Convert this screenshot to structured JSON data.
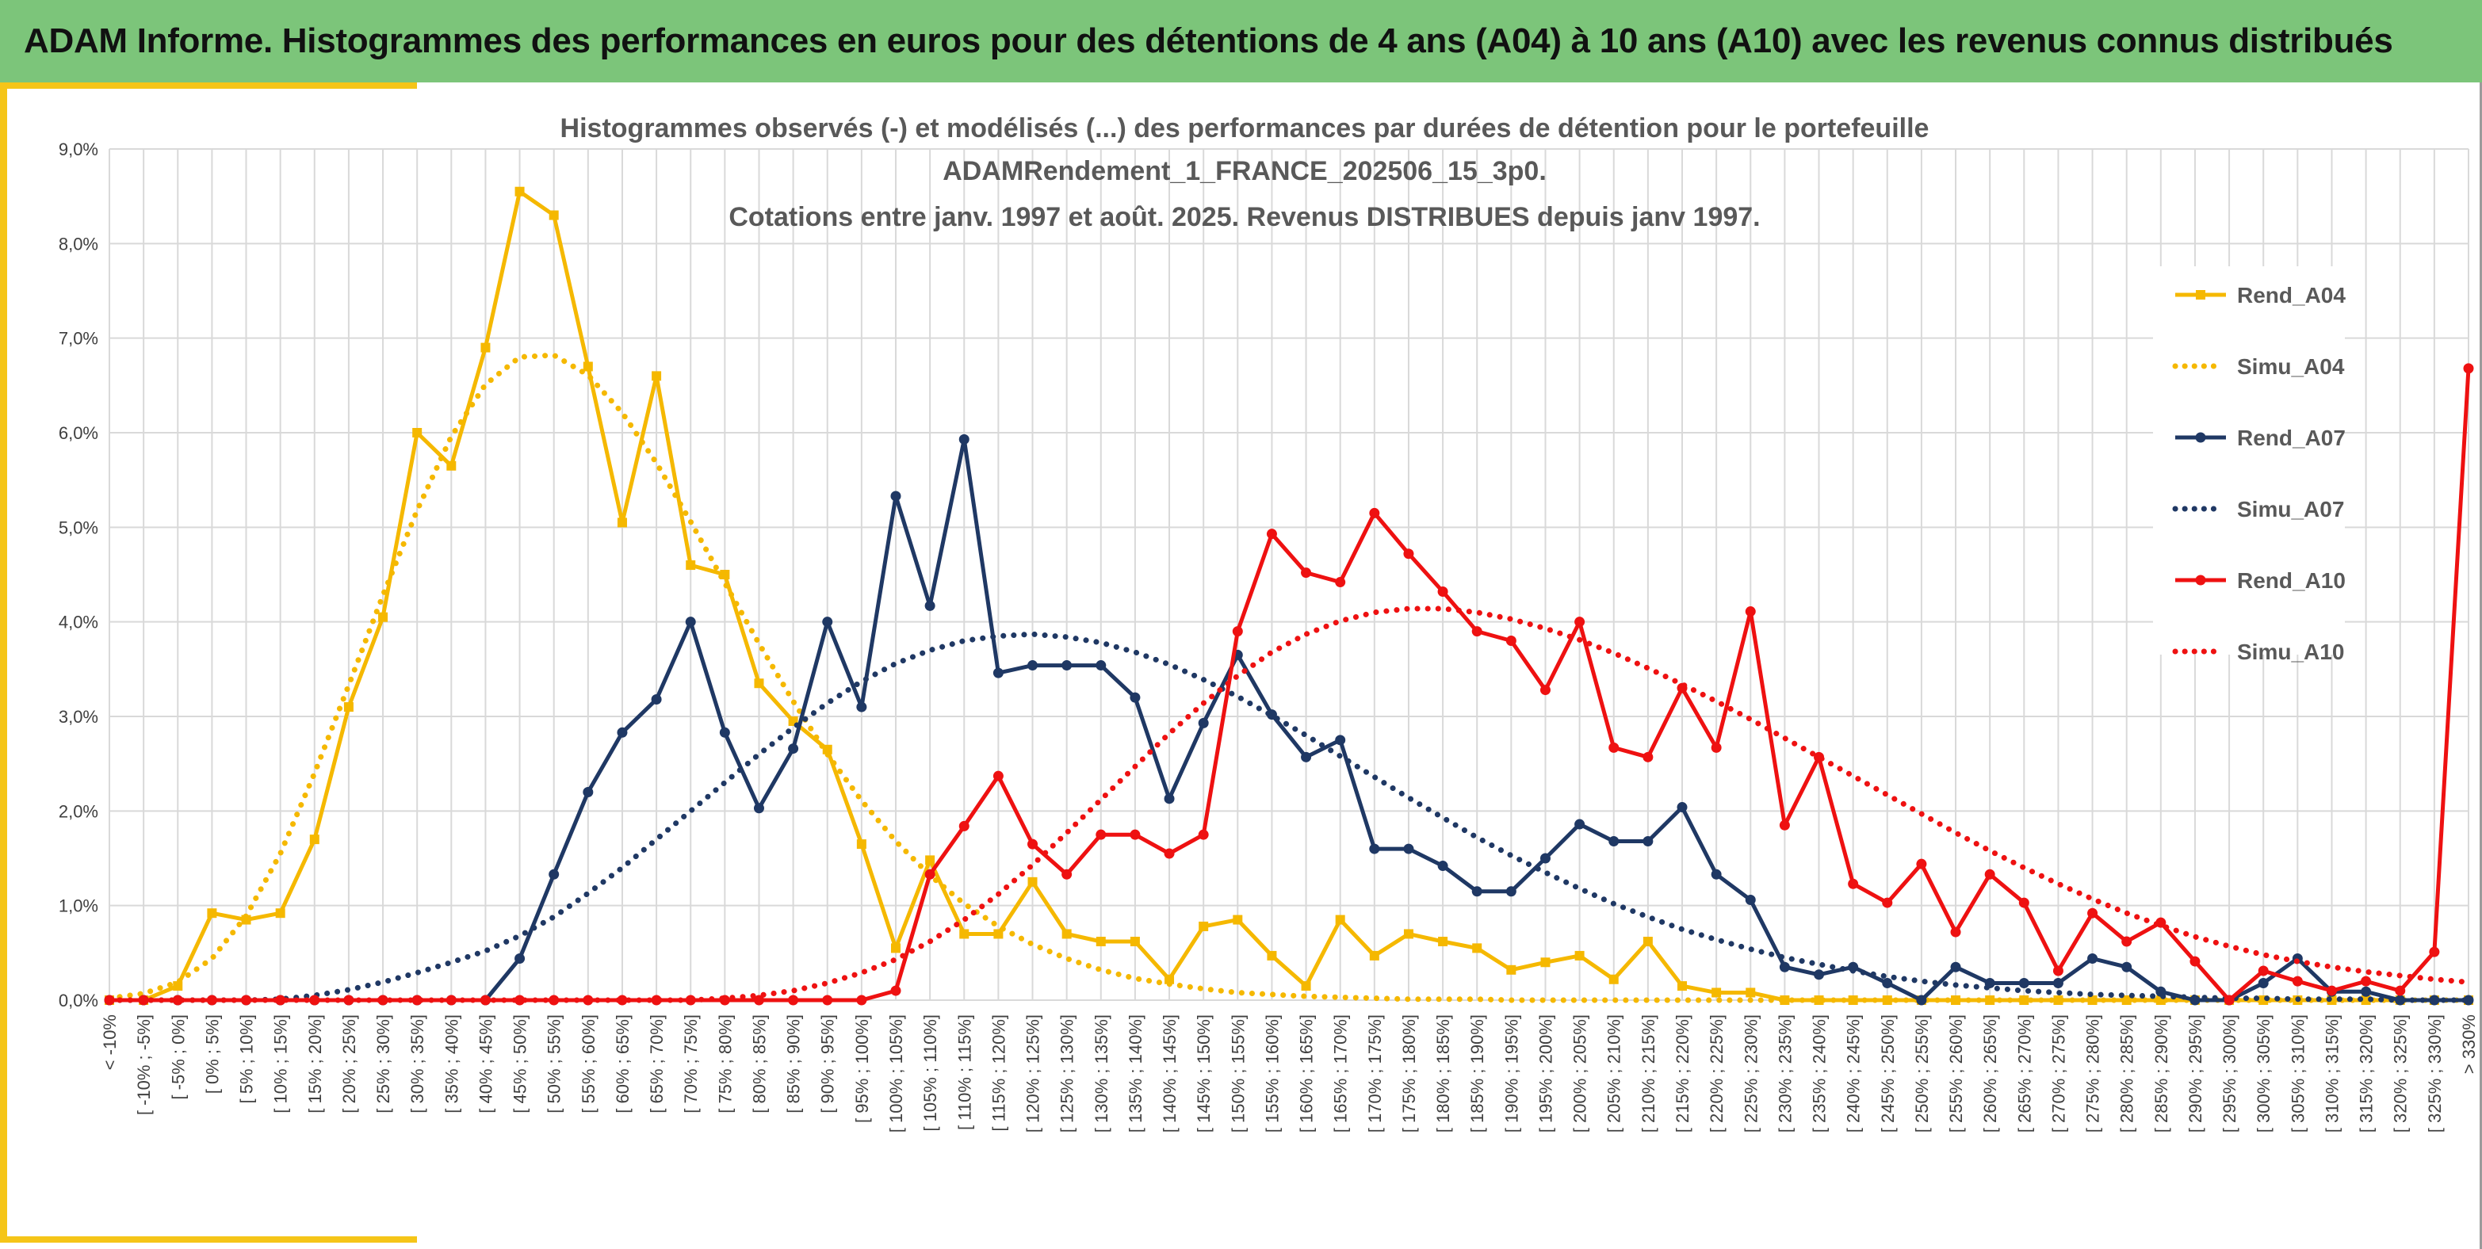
{
  "header": {
    "title": "ADAM Informe. Histogrammes des performances en euros pour des détentions de 4 ans (A04) à 10 ans (A10) avec les revenus connus distribués"
  },
  "colors": {
    "header_bg": "#7cc57a",
    "accent": "#f5c518",
    "A04": "#f5b800",
    "A07": "#1f3864",
    "A10": "#ee1111"
  },
  "chart_data": {
    "type": "line",
    "title_lines": [
      "Histogrammes observés (-) et modélisés (...) des performances par durées de détention pour le portefeuille",
      "ADAMRendement_1_FRANCE_202506_15_3p0.",
      "Cotations entre janv. 1997 et août. 2025. Revenus DISTRIBUES depuis janv 1997."
    ],
    "ylim": [
      0,
      9
    ],
    "yticks": [
      "0,0%",
      "1,0%",
      "2,0%",
      "3,0%",
      "4,0%",
      "5,0%",
      "6,0%",
      "7,0%",
      "8,0%",
      "9,0%"
    ],
    "grid": true,
    "legend_position": "right",
    "categories": [
      "< -10%",
      "[ -10% ; -5%]",
      "[ -5% ; 0%]",
      "[ 0% ; 5%]",
      "[ 5% ; 10%]",
      "[ 10% ; 15%]",
      "[ 15% ; 20%]",
      "[ 20% ; 25%]",
      "[ 25% ; 30%]",
      "[ 30% ; 35%]",
      "[ 35% ; 40%]",
      "[ 40% ; 45%]",
      "[ 45% ; 50%]",
      "[ 50% ; 55%]",
      "[ 55% ; 60%]",
      "[ 60% ; 65%]",
      "[ 65% ; 70%]",
      "[ 70% ; 75%]",
      "[ 75% ; 80%]",
      "[ 80% ; 85%]",
      "[ 85% ; 90%]",
      "[ 90% ; 95%]",
      "[ 95% ; 100%]",
      "[ 100% ; 105%]",
      "[ 105% ; 110%]",
      "[ 110% ; 115%]",
      "[ 115% ; 120%]",
      "[ 120% ; 125%]",
      "[ 125% ; 130%]",
      "[ 130% ; 135%]",
      "[ 135% ; 140%]",
      "[ 140% ; 145%]",
      "[ 145% ; 150%]",
      "[ 150% ; 155%]",
      "[ 155% ; 160%]",
      "[ 160% ; 165%]",
      "[ 165% ; 170%]",
      "[ 170% ; 175%]",
      "[ 175% ; 180%]",
      "[ 180% ; 185%]",
      "[ 185% ; 190%]",
      "[ 190% ; 195%]",
      "[ 195% ; 200%]",
      "[ 200% ; 205%]",
      "[ 205% ; 210%]",
      "[ 210% ; 215%]",
      "[ 215% ; 220%]",
      "[ 220% ; 225%]",
      "[ 225% ; 230%]",
      "[ 230% ; 235%]",
      "[ 235% ; 240%]",
      "[ 240% ; 245%]",
      "[ 245% ; 250%]",
      "[ 250% ; 255%]",
      "[ 255% ; 260%]",
      "[ 260% ; 265%]",
      "[ 265% ; 270%]",
      "[ 270% ; 275%]",
      "[ 275% ; 280%]",
      "[ 280% ; 285%]",
      "[ 285% ; 290%]",
      "[ 290% ; 295%]",
      "[ 295% ; 300%]",
      "[ 300% ; 305%]",
      "[ 305% ; 310%]",
      "[ 310% ; 315%]",
      "[ 315% ; 320%]",
      "[ 320% ; 325%]",
      "[ 325% ; 330%]",
      "> 330%"
    ],
    "series": [
      {
        "name": "Rend_A04",
        "style": "solid",
        "marker": "square",
        "color": "#f5b800",
        "values": [
          0.0,
          0.0,
          0.15,
          0.92,
          0.85,
          0.92,
          1.7,
          3.1,
          4.05,
          6.0,
          5.65,
          6.9,
          8.55,
          8.3,
          6.7,
          5.05,
          6.6,
          4.6,
          4.5,
          3.35,
          2.95,
          2.65,
          1.65,
          0.55,
          1.48,
          0.7,
          0.7,
          1.25,
          0.7,
          0.62,
          0.62,
          0.22,
          0.78,
          0.85,
          0.47,
          0.15,
          0.85,
          0.47,
          0.7,
          0.62,
          0.55,
          0.32,
          0.4,
          0.47,
          0.22,
          0.62,
          0.15,
          0.08,
          0.08,
          0.0,
          0.0,
          0.0,
          0.0,
          0.0,
          0.0,
          0.0,
          0.0,
          0.0,
          0.0,
          0.0,
          0.0,
          0.0,
          0.0,
          0.0,
          0.0,
          0.0,
          0.0,
          0.0,
          0.0,
          0.0
        ]
      },
      {
        "name": "Simu_A04",
        "style": "dotted",
        "color": "#f5b800",
        "values": [
          0.02,
          0.07,
          0.19,
          0.44,
          0.89,
          1.55,
          2.4,
          3.33,
          4.28,
          5.18,
          5.96,
          6.51,
          6.8,
          6.82,
          6.61,
          6.21,
          5.68,
          5.06,
          4.41,
          3.77,
          3.16,
          2.6,
          2.11,
          1.68,
          1.32,
          1.02,
          0.78,
          0.59,
          0.44,
          0.32,
          0.23,
          0.17,
          0.12,
          0.08,
          0.06,
          0.04,
          0.03,
          0.02,
          0.01,
          0.01,
          0.01,
          0.0,
          0.0,
          0.0,
          0.0,
          0.0,
          0.0,
          0.0,
          0.0,
          0.0,
          0.0,
          0.0,
          0.0,
          0.0,
          0.0,
          0.0,
          0.0,
          0.0,
          0.0,
          0.0,
          0.0,
          0.0,
          0.0,
          0.0,
          0.0,
          0.0,
          0.0,
          0.0,
          0.0,
          0.0
        ]
      },
      {
        "name": "Rend_A07",
        "style": "solid",
        "marker": "circle",
        "color": "#1f3864",
        "values": [
          0.0,
          0.0,
          0.0,
          0.0,
          0.0,
          0.0,
          0.0,
          0.0,
          0.0,
          0.0,
          0.0,
          0.0,
          0.44,
          1.33,
          2.2,
          2.83,
          3.18,
          4.0,
          2.83,
          2.03,
          2.66,
          4.0,
          3.1,
          5.33,
          4.17,
          5.93,
          3.46,
          3.54,
          3.54,
          3.54,
          3.2,
          2.13,
          2.93,
          3.65,
          3.02,
          2.57,
          2.75,
          1.6,
          1.6,
          1.42,
          1.15,
          1.15,
          1.5,
          1.86,
          1.68,
          1.68,
          2.04,
          1.33,
          1.06,
          0.35,
          0.27,
          0.35,
          0.18,
          0.0,
          0.35,
          0.18,
          0.18,
          0.18,
          0.44,
          0.35,
          0.09,
          0.0,
          0.0,
          0.18,
          0.44,
          0.09,
          0.09,
          0.0,
          0.0,
          0.0
        ]
      },
      {
        "name": "Simu_A07",
        "style": "dotted",
        "color": "#1f3864",
        "values": [
          0.0,
          0.0,
          0.0,
          0.0,
          0.0,
          0.01,
          0.05,
          0.11,
          0.19,
          0.29,
          0.4,
          0.52,
          0.68,
          0.88,
          1.13,
          1.4,
          1.7,
          2.0,
          2.3,
          2.6,
          2.88,
          3.14,
          3.37,
          3.56,
          3.7,
          3.8,
          3.85,
          3.87,
          3.84,
          3.78,
          3.68,
          3.55,
          3.39,
          3.21,
          3.01,
          2.8,
          2.58,
          2.36,
          2.14,
          1.93,
          1.72,
          1.53,
          1.35,
          1.18,
          1.02,
          0.88,
          0.75,
          0.64,
          0.54,
          0.45,
          0.38,
          0.31,
          0.25,
          0.2,
          0.16,
          0.13,
          0.1,
          0.08,
          0.06,
          0.05,
          0.04,
          0.03,
          0.02,
          0.02,
          0.01,
          0.01,
          0.01,
          0.0,
          0.0,
          0.0
        ]
      },
      {
        "name": "Rend_A10",
        "style": "solid",
        "marker": "circle",
        "color": "#ee1111",
        "values": [
          0.0,
          0.0,
          0.0,
          0.0,
          0.0,
          0.0,
          0.0,
          0.0,
          0.0,
          0.0,
          0.0,
          0.0,
          0.0,
          0.0,
          0.0,
          0.0,
          0.0,
          0.0,
          0.0,
          0.0,
          0.0,
          0.0,
          0.0,
          0.1,
          1.33,
          1.84,
          2.37,
          1.65,
          1.33,
          1.75,
          1.75,
          1.55,
          1.75,
          3.9,
          4.93,
          4.52,
          4.42,
          5.15,
          4.72,
          4.32,
          3.9,
          3.8,
          3.28,
          4.0,
          2.67,
          2.57,
          3.3,
          2.67,
          4.11,
          1.85,
          2.57,
          1.23,
          1.03,
          1.44,
          0.72,
          1.33,
          1.03,
          0.31,
          0.92,
          0.62,
          0.82,
          0.41,
          0.0,
          0.31,
          0.2,
          0.1,
          0.2,
          0.1,
          0.51,
          6.68
        ]
      },
      {
        "name": "Simu_A10",
        "style": "dotted",
        "color": "#ee1111",
        "values": [
          0.0,
          0.0,
          0.0,
          0.0,
          0.0,
          0.0,
          0.0,
          0.0,
          0.0,
          0.0,
          0.0,
          0.0,
          0.0,
          0.0,
          0.0,
          0.0,
          0.0,
          0.0,
          0.02,
          0.05,
          0.1,
          0.18,
          0.29,
          0.43,
          0.62,
          0.85,
          1.12,
          1.43,
          1.77,
          2.12,
          2.47,
          2.82,
          3.14,
          3.43,
          3.68,
          3.87,
          4.01,
          4.1,
          4.14,
          4.14,
          4.1,
          4.03,
          3.93,
          3.81,
          3.67,
          3.51,
          3.34,
          3.16,
          2.97,
          2.77,
          2.57,
          2.37,
          2.17,
          1.97,
          1.77,
          1.58,
          1.4,
          1.23,
          1.07,
          0.92,
          0.79,
          0.67,
          0.57,
          0.48,
          0.41,
          0.35,
          0.3,
          0.26,
          0.22,
          0.19
        ]
      }
    ]
  }
}
